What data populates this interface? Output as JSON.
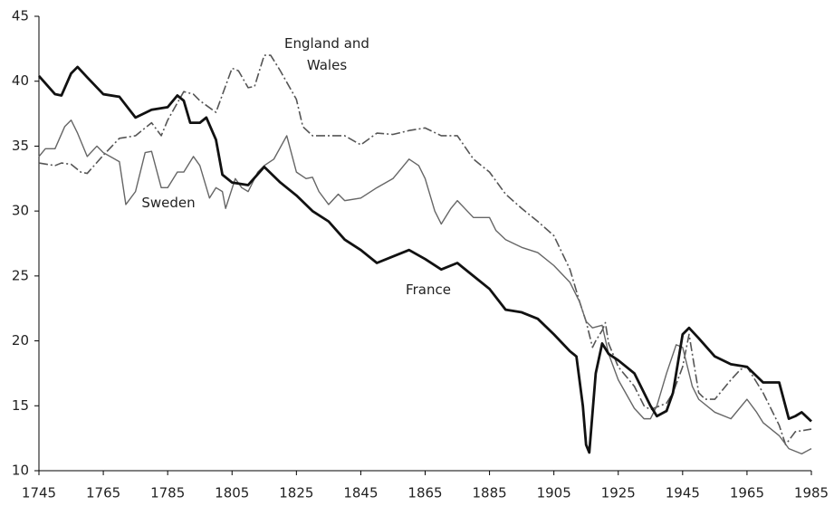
{
  "chart_data": {
    "type": "line",
    "xlim": [
      1745,
      1985
    ],
    "xticks": [
      1745,
      1765,
      1785,
      1805,
      1825,
      1845,
      1865,
      1885,
      1905,
      1925,
      1945,
      1965,
      1985
    ],
    "ylim": [
      10,
      45
    ],
    "yticks": [
      10,
      15,
      20,
      25,
      30,
      35,
      40,
      45
    ],
    "grid": false,
    "series": [
      {
        "name": "England and Wales",
        "color": "#555555",
        "linestyle": "dashdot",
        "x": [
          1745,
          1750,
          1752,
          1755,
          1758,
          1760,
          1765,
          1770,
          1775,
          1780,
          1783,
          1785,
          1790,
          1793,
          1795,
          1800,
          1805,
          1807,
          1810,
          1812,
          1815,
          1817,
          1820,
          1825,
          1827,
          1830,
          1835,
          1840,
          1845,
          1850,
          1855,
          1860,
          1865,
          1870,
          1875,
          1880,
          1885,
          1890,
          1895,
          1900,
          1905,
          1910,
          1913,
          1915,
          1917,
          1918,
          1920,
          1921,
          1922,
          1925,
          1930,
          1933,
          1935,
          1938,
          1940,
          1942,
          1945,
          1947,
          1950,
          1952,
          1955,
          1960,
          1963,
          1965,
          1970,
          1975,
          1977,
          1980,
          1985
        ],
        "values": [
          33.7,
          33.5,
          33.7,
          33.6,
          33,
          32.9,
          34.3,
          35.6,
          35.8,
          36.8,
          35.8,
          37,
          39.2,
          39,
          38.5,
          37.6,
          41,
          40.8,
          39.5,
          39.6,
          42,
          42,
          40.8,
          38.6,
          36.5,
          35.8,
          35.8,
          35.8,
          35.1,
          36,
          35.9,
          36.2,
          36.4,
          35.8,
          35.8,
          34,
          33,
          31.3,
          30.2,
          29.2,
          28.1,
          25.5,
          23,
          21.5,
          19.5,
          20,
          20.8,
          21.4,
          19.8,
          18,
          16.5,
          15,
          14.7,
          15,
          15.2,
          16,
          18,
          20.5,
          16,
          15.5,
          15.5,
          17,
          17.8,
          18,
          16,
          13.5,
          12,
          13,
          13.2
        ]
      },
      {
        "name": "Sweden",
        "color": "#666666",
        "linestyle": "solid",
        "x": [
          1745,
          1747,
          1750,
          1753,
          1755,
          1757,
          1760,
          1763,
          1765,
          1770,
          1772,
          1775,
          1778,
          1780,
          1783,
          1785,
          1788,
          1790,
          1793,
          1795,
          1798,
          1800,
          1802,
          1803,
          1806,
          1808,
          1810,
          1813,
          1815,
          1818,
          1822,
          1825,
          1828,
          1830,
          1832,
          1835,
          1838,
          1840,
          1845,
          1850,
          1855,
          1860,
          1863,
          1865,
          1868,
          1870,
          1873,
          1875,
          1880,
          1885,
          1887,
          1890,
          1895,
          1900,
          1905,
          1910,
          1913,
          1915,
          1917,
          1920,
          1922,
          1925,
          1930,
          1933,
          1935,
          1937,
          1940,
          1943,
          1945,
          1948,
          1950,
          1955,
          1960,
          1965,
          1968,
          1970,
          1975,
          1978,
          1982,
          1985
        ],
        "values": [
          34.2,
          34.8,
          34.8,
          36.5,
          37,
          36,
          34.2,
          35,
          34.5,
          33.8,
          30.5,
          31.5,
          34.5,
          34.6,
          31.8,
          31.8,
          33,
          33,
          34.2,
          33.5,
          31,
          31.8,
          31.5,
          30.2,
          32.5,
          31.8,
          31.5,
          33,
          33.5,
          34,
          35.8,
          33,
          32.5,
          32.6,
          31.5,
          30.5,
          31.3,
          30.8,
          31,
          31.8,
          32.5,
          34,
          33.5,
          32.5,
          30,
          29,
          30.2,
          30.8,
          29.5,
          29.5,
          28.5,
          27.8,
          27.2,
          26.8,
          25.8,
          24.5,
          23,
          21.5,
          21,
          21.2,
          19,
          17,
          14.8,
          14,
          14,
          15,
          17.5,
          19.7,
          19.5,
          16.5,
          15.5,
          14.5,
          14,
          15.5,
          14.5,
          13.7,
          12.7,
          11.7,
          11.3,
          11.7
        ]
      },
      {
        "name": "France",
        "color": "#111111",
        "linestyle": "solid",
        "x": [
          1745,
          1750,
          1752,
          1755,
          1757,
          1760,
          1765,
          1770,
          1775,
          1780,
          1785,
          1788,
          1790,
          1792,
          1795,
          1797,
          1800,
          1802,
          1805,
          1810,
          1815,
          1820,
          1825,
          1830,
          1835,
          1840,
          1845,
          1850,
          1855,
          1860,
          1865,
          1870,
          1875,
          1880,
          1885,
          1890,
          1895,
          1900,
          1905,
          1910,
          1912,
          1914,
          1915,
          1916,
          1918,
          1920,
          1922,
          1925,
          1930,
          1935,
          1937,
          1940,
          1942,
          1945,
          1947,
          1950,
          1955,
          1960,
          1965,
          1970,
          1975,
          1978,
          1980,
          1982,
          1985
        ],
        "values": [
          40.4,
          39,
          38.9,
          40.6,
          41.1,
          40.3,
          39,
          38.8,
          37.2,
          37.8,
          38,
          38.9,
          38.5,
          36.8,
          36.8,
          37.2,
          35.5,
          32.8,
          32.2,
          32,
          33.4,
          32.2,
          31.2,
          30,
          29.2,
          27.8,
          27,
          26,
          26.5,
          27,
          26.3,
          25.5,
          26,
          25,
          24,
          22.4,
          22.2,
          21.7,
          20.5,
          19.2,
          18.8,
          15,
          12,
          11.4,
          17.5,
          19.8,
          19,
          18.5,
          17.5,
          15,
          14.2,
          14.6,
          16,
          20.5,
          21,
          20.2,
          18.8,
          18.2,
          18,
          16.8,
          16.8,
          14,
          14.2,
          14.5,
          13.8
        ]
      }
    ]
  }
}
